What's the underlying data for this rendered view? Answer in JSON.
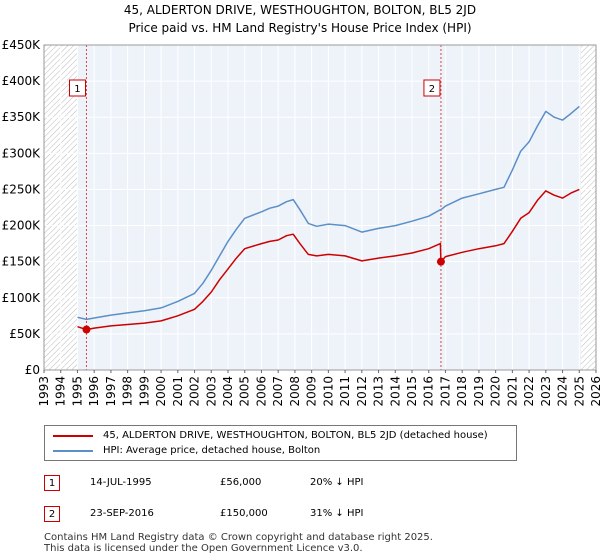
{
  "chart_data": {
    "type": "line",
    "title": "45, ALDERTON DRIVE, WESTHOUGHTON, BOLTON, BL5 2JD",
    "subtitle": "Price paid vs. HM Land Registry's House Price Index (HPI)",
    "xlabel": "",
    "ylabel": "",
    "xlim": [
      1993,
      2026
    ],
    "ylim": [
      0,
      450000
    ],
    "yticks": [
      0,
      50000,
      100000,
      150000,
      200000,
      250000,
      300000,
      350000,
      400000,
      450000
    ],
    "ytick_labels": [
      "£0",
      "£50K",
      "£100K",
      "£150K",
      "£200K",
      "£250K",
      "£300K",
      "£350K",
      "£400K",
      "£450K"
    ],
    "xticks": [
      1993,
      1994,
      1995,
      1996,
      1997,
      1998,
      1999,
      2000,
      2001,
      2002,
      2003,
      2004,
      2005,
      2006,
      2007,
      2008,
      2009,
      2010,
      2011,
      2012,
      2013,
      2014,
      2015,
      2016,
      2017,
      2018,
      2019,
      2020,
      2021,
      2022,
      2023,
      2024,
      2025,
      2026
    ],
    "xtick_labels": [
      "1993",
      "1994",
      "1995",
      "1996",
      "1997",
      "1998",
      "1999",
      "2000",
      "2001",
      "2002",
      "2003",
      "2004",
      "2005",
      "2006",
      "2007",
      "2008",
      "2009",
      "2010",
      "2011",
      "2012",
      "2013",
      "2014",
      "2015",
      "2016",
      "2017",
      "2018",
      "2019",
      "2020",
      "2021",
      "2022",
      "2023",
      "2024",
      "2025",
      "2026"
    ],
    "grid": true,
    "hatched_ranges": [
      [
        1993,
        1995.0
      ],
      [
        2025.1,
        2026
      ]
    ],
    "series": [
      {
        "name": "45, ALDERTON DRIVE, WESTHOUGHTON, BOLTON, BL5 2JD (detached house)",
        "color": "#cc0000",
        "x": [
          1995.0,
          1995.54,
          1996,
          1997,
          1998,
          1999,
          2000,
          2001,
          2002,
          2002.5,
          2003,
          2003.5,
          2004,
          2004.5,
          2005,
          2006,
          2006.5,
          2007,
          2007.5,
          2007.9,
          2008.3,
          2008.8,
          2009.3,
          2010,
          2011,
          2012,
          2013,
          2014,
          2015,
          2016,
          2016.7,
          2016.73,
          2017,
          2018,
          2019,
          2020,
          2020.5,
          2021,
          2021.5,
          2022,
          2022.5,
          2023,
          2023.5,
          2024,
          2024.5,
          2025.0
        ],
        "y": [
          60000,
          56000,
          58000,
          61000,
          63000,
          65000,
          68000,
          75000,
          84000,
          95000,
          108000,
          125000,
          140000,
          155000,
          168000,
          175000,
          178000,
          180000,
          186000,
          188000,
          175000,
          160000,
          158000,
          160000,
          158000,
          151000,
          155000,
          158000,
          162000,
          168000,
          175000,
          150000,
          157000,
          163000,
          168000,
          172000,
          175000,
          192000,
          210000,
          218000,
          235000,
          248000,
          242000,
          238000,
          245000,
          250000
        ]
      },
      {
        "name": "HPI: Average price, detached house, Bolton",
        "color": "#5b8fc7",
        "x": [
          1995.0,
          1995.54,
          1996,
          1997,
          1998,
          1999,
          2000,
          2001,
          2002,
          2002.5,
          2003,
          2003.5,
          2004,
          2004.5,
          2005,
          2006,
          2006.5,
          2007,
          2007.5,
          2007.9,
          2008.3,
          2008.8,
          2009.3,
          2010,
          2011,
          2012,
          2013,
          2014,
          2015,
          2016,
          2016.7,
          2016.73,
          2017,
          2018,
          2019,
          2020,
          2020.5,
          2021,
          2021.5,
          2022,
          2022.5,
          2023,
          2023.5,
          2024,
          2024.5,
          2025.0
        ],
        "y": [
          73000,
          70000,
          72000,
          76000,
          79000,
          82000,
          86000,
          95000,
          106000,
          120000,
          138000,
          158000,
          178000,
          195000,
          210000,
          219000,
          224000,
          227000,
          233000,
          236000,
          222000,
          203000,
          199000,
          202000,
          200000,
          191000,
          196000,
          200000,
          206000,
          213000,
          222000,
          222000,
          227000,
          238000,
          244000,
          250000,
          253000,
          277000,
          303000,
          316000,
          338000,
          358000,
          350000,
          346000,
          355000,
          365000
        ]
      }
    ],
    "sales": [
      {
        "label": "1",
        "x": 1995.54,
        "y": 56000
      },
      {
        "label": "2",
        "x": 2016.73,
        "y": 150000
      }
    ]
  },
  "legend": {
    "items": [
      {
        "label": "45, ALDERTON DRIVE, WESTHOUGHTON, BOLTON, BL5 2JD (detached house)",
        "color": "#cc0000"
      },
      {
        "label": "HPI: Average price, detached house, Bolton",
        "color": "#5b8fc7"
      }
    ]
  },
  "sales_table": [
    {
      "num": "1",
      "date": "14-JUL-1995",
      "price": "£56,000",
      "hpi": "20% ↓ HPI"
    },
    {
      "num": "2",
      "date": "23-SEP-2016",
      "price": "£150,000",
      "hpi": "31% ↓ HPI"
    }
  ],
  "footer": {
    "line1": "Contains HM Land Registry data © Crown copyright and database right 2025.",
    "line2": "This data is licensed under the Open Government Licence v3.0."
  }
}
